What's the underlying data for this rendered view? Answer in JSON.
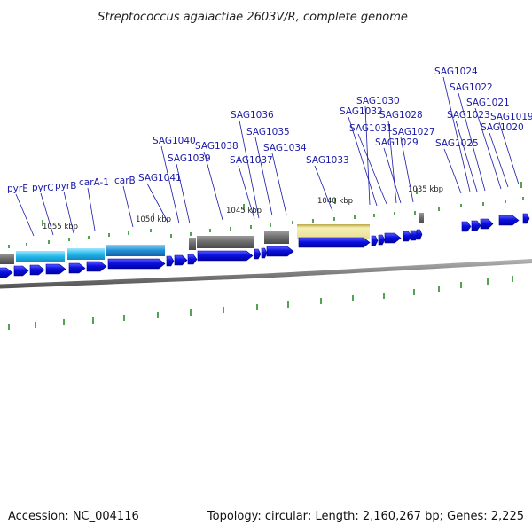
{
  "title": "Streptococcus agalactiae 2603V/R, complete genome",
  "footer": {
    "accession": "Accession: NC_004116",
    "summary": "Topology: circular; Length: 2,160,267 bp; Genes: 2,225"
  },
  "colors": {
    "cds": "#0a10e0",
    "cds_dark": "#0000a0",
    "label": "#1a1aa6",
    "pyrimidine_feature": "#22b8e8",
    "pyrimidine_feature_alt": "#1f8fd6",
    "grey_feature": "#6a6a6a",
    "yellow_feature": "#ede59a",
    "tick": "#2a8a2a",
    "backbone": "#7d7d7d"
  },
  "kbp_ticks": [
    "1055 kbp",
    "1050 kbp",
    "1045 kbp",
    "1040 kbp",
    "1035 kbp"
  ],
  "genes": [
    "pyrE",
    "pyrC",
    "pyrB",
    "carA-1",
    "carB",
    "SAG1041",
    "SAG1040",
    "SAG1039",
    "SAG1038",
    "SAG1037",
    "SAG1036",
    "SAG1035",
    "SAG1034",
    "SAG1033",
    "SAG1032",
    "SAG1031",
    "SAG1030",
    "SAG1029",
    "SAG1028",
    "SAG1027",
    "SAG1025",
    "SAG1024",
    "SAG1023",
    "SAG1022",
    "SAG1021",
    "SAG1020",
    "SAG1019"
  ]
}
